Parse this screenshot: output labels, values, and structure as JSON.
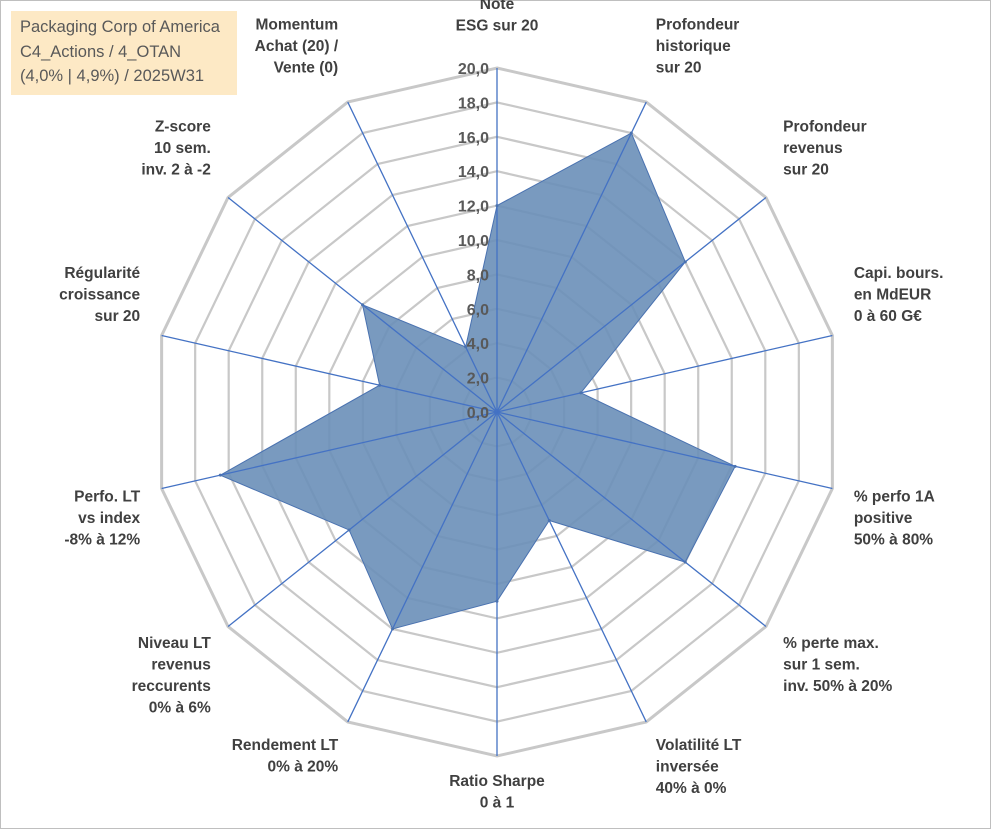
{
  "title_lines": [
    "Packaging Corp of America",
    "C4_Actions / 4_OTAN",
    "(4,0% | 4,9%) / 2025W31"
  ],
  "colors": {
    "grid": "#c8c8c8",
    "spoke": "#4472c4",
    "fill": "#6a8fb8",
    "fill_stroke": "#4a72b0"
  },
  "chart_data": {
    "type": "radar",
    "rmin": 0,
    "rmax": 20,
    "step": 2,
    "tick_labels": [
      "0,0",
      "2,0",
      "4,0",
      "6,0",
      "8,0",
      "10,0",
      "12,0",
      "14,0",
      "16,0",
      "18,0",
      "20,0"
    ],
    "axes": [
      {
        "label": [
          "Note",
          "ESG sur 20"
        ],
        "value": 12
      },
      {
        "label": [
          "Profondeur",
          "historique",
          "sur 20"
        ],
        "value": 18
      },
      {
        "label": [
          "Profondeur",
          "revenus",
          "sur 20"
        ],
        "value": 14
      },
      {
        "label": [
          "Capi. bours.",
          "en MdEUR",
          "0 à 60 G€"
        ],
        "value": 5
      },
      {
        "label": [
          "% perfo 1A",
          "positive",
          "50% à 80%"
        ],
        "value": 14.2
      },
      {
        "label": [
          "% perte max.",
          "sur 1 sem.",
          "inv. 50% à 20%"
        ],
        "value": 14
      },
      {
        "label": [
          "Volatilité LT",
          "inversée",
          "40% à 0%"
        ],
        "value": 7
      },
      {
        "label": [
          "Ratio Sharpe",
          "0 à 1"
        ],
        "value": 11
      },
      {
        "label": [
          "Rendement LT",
          "0% à 20%"
        ],
        "value": 14
      },
      {
        "label": [
          "Niveau LT",
          "revenus",
          "reccurents",
          "0% à 6%"
        ],
        "value": 11
      },
      {
        "label": [
          "Perfo. LT",
          "vs index",
          "-8% à 12%"
        ],
        "value": 16.5
      },
      {
        "label": [
          "Régularité",
          "croissance",
          "sur 20"
        ],
        "value": 7
      },
      {
        "label": [
          "Z-score",
          "10 sem.",
          "inv. 2 à -2"
        ],
        "value": 10
      },
      {
        "label": [
          "Momentum",
          "Achat (20) /",
          "Vente (0)"
        ],
        "value": 4.2
      }
    ]
  }
}
